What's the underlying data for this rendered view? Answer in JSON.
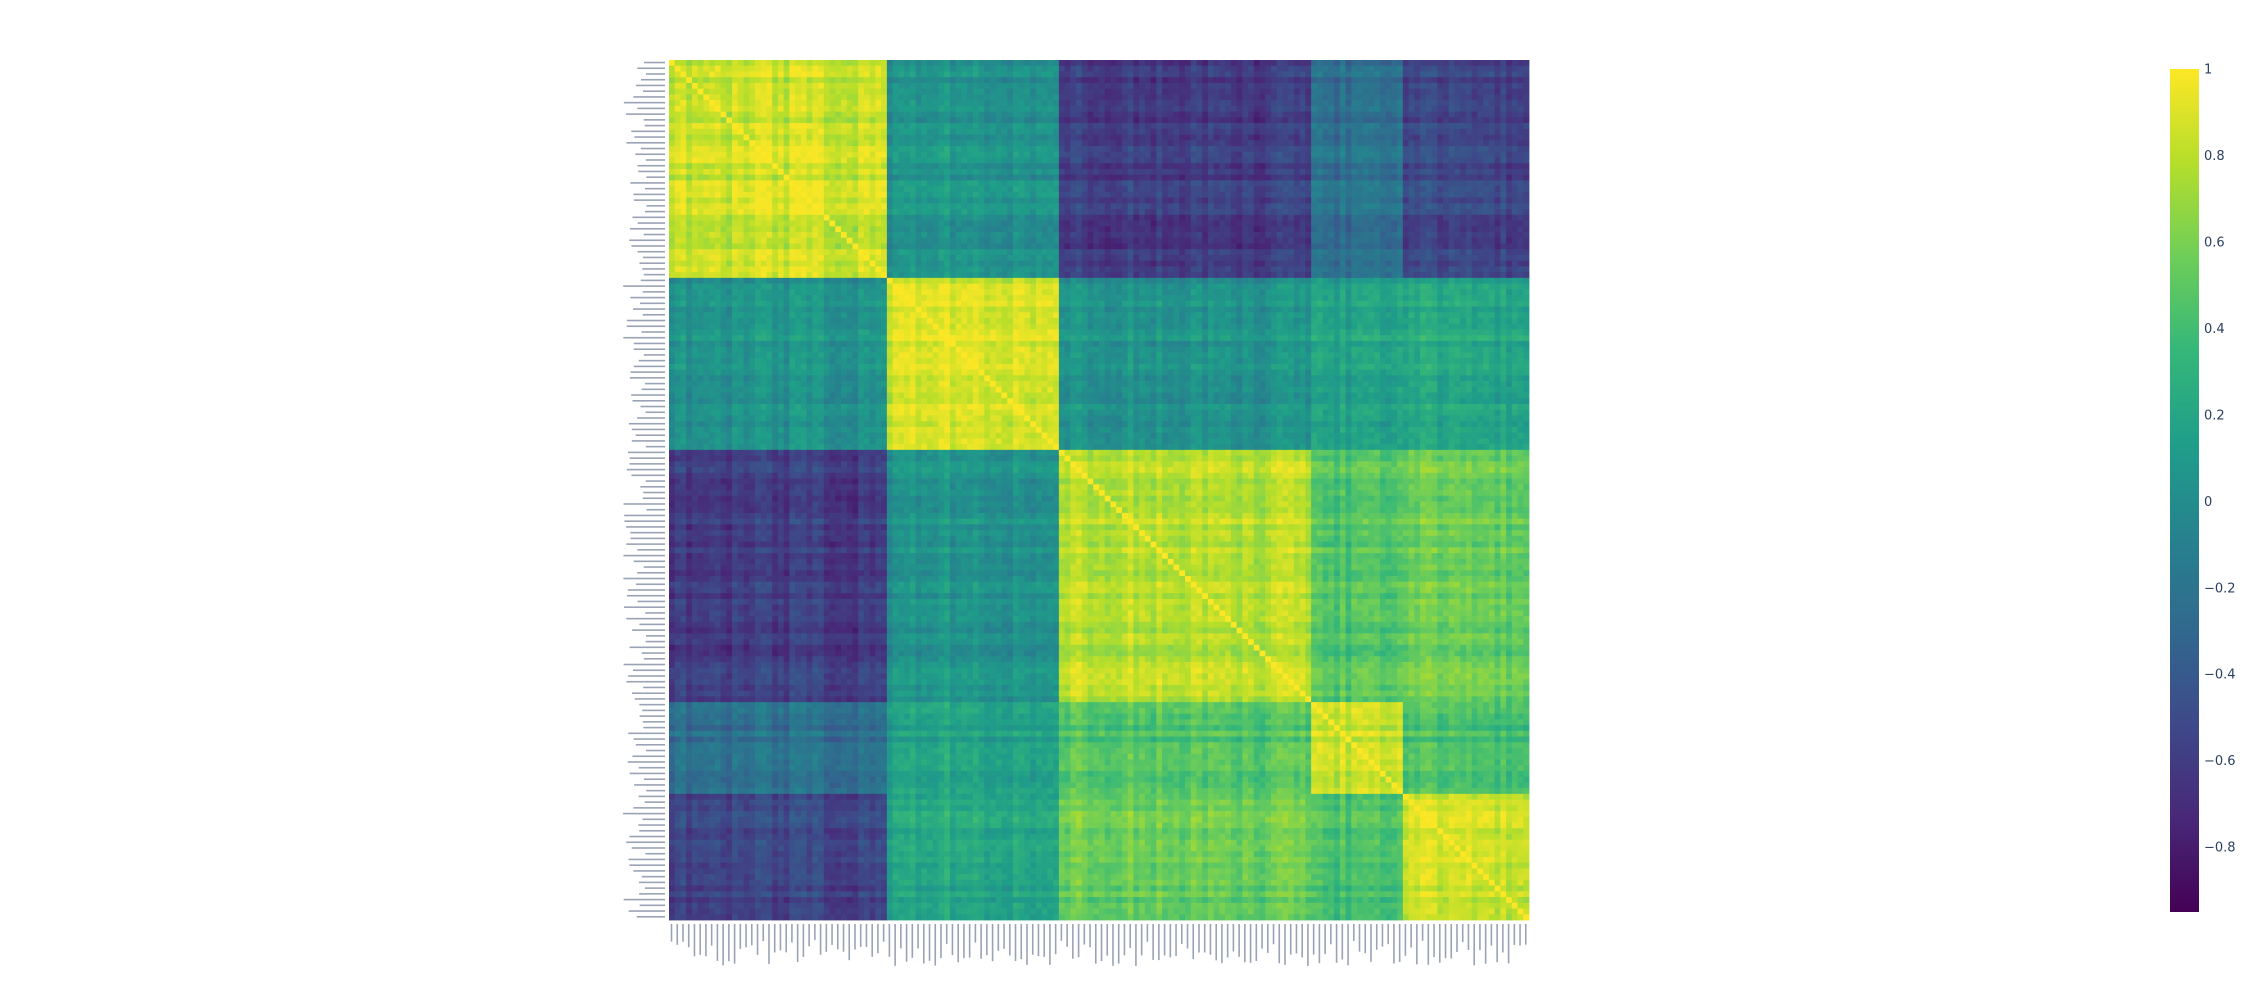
{
  "chart_data": {
    "type": "heatmap",
    "title": "",
    "xlabel": "",
    "ylabel": "",
    "n_rows": 150,
    "n_cols": 150,
    "row_labels_legible": false,
    "colorscale": "Viridis",
    "colorscale_stops": [
      "#440154",
      "#482878",
      "#3e4989",
      "#31688e",
      "#26828e",
      "#1f9e89",
      "#35b779",
      "#6ece58",
      "#b5de2b",
      "#fde725"
    ],
    "zlim": [
      -0.95,
      1
    ],
    "diagonal_value": 1,
    "block_boundaries": [
      0,
      38,
      68,
      112,
      128,
      150
    ],
    "block_mean_correlation": [
      [
        0.85,
        0.05,
        -0.6,
        -0.25,
        -0.55
      ],
      [
        0.05,
        0.9,
        0.05,
        0.15,
        0.2
      ],
      [
        -0.6,
        0.05,
        0.8,
        0.45,
        0.55
      ],
      [
        -0.25,
        0.15,
        0.45,
        0.8,
        0.4
      ],
      [
        -0.55,
        0.2,
        0.55,
        0.4,
        0.85
      ]
    ],
    "colorbar": {
      "tick_values": [
        1,
        0.8,
        0.6,
        0.4,
        0.2,
        0,
        -0.2,
        -0.4,
        -0.6,
        -0.8
      ],
      "tick_labels": [
        "1",
        "0.8",
        "0.6",
        "0.4",
        "0.2",
        "0",
        "−0.2",
        "−0.4",
        "−0.6",
        "−0.8"
      ]
    }
  }
}
